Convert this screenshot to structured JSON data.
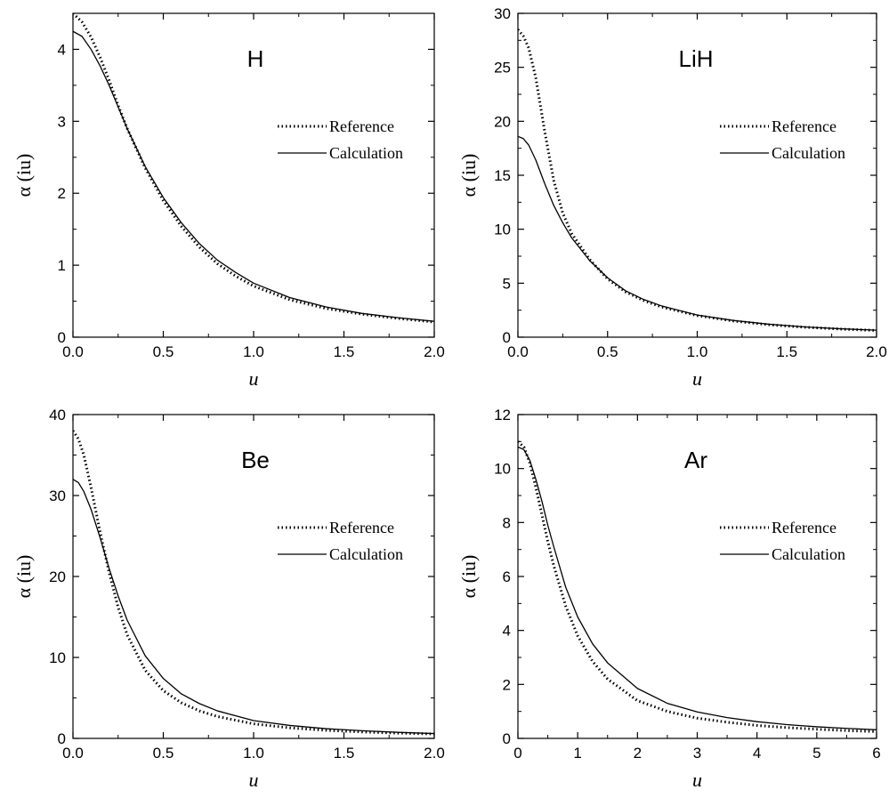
{
  "chart_data": [
    {
      "type": "line",
      "label": "H",
      "xlabel": "u",
      "ylabel": "α (iu)",
      "xlim": [
        0,
        2.0
      ],
      "ylim": [
        0,
        4.5
      ],
      "xticks": [
        0,
        0.5,
        1.0,
        1.5,
        2.0
      ],
      "xtick_labels": [
        "0.0",
        "0.5",
        "1.0",
        "1.5",
        "2.0"
      ],
      "yticks": [
        0,
        1,
        2,
        3,
        4
      ],
      "ytick_labels": [
        "0",
        "1",
        "2",
        "3",
        "4"
      ],
      "legend_position": "right-middle",
      "x": [
        0,
        0.05,
        0.1,
        0.15,
        0.2,
        0.25,
        0.3,
        0.4,
        0.5,
        0.6,
        0.7,
        0.8,
        0.9,
        1.0,
        1.2,
        1.4,
        1.6,
        1.8,
        2.0
      ],
      "series": [
        {
          "name": "Reference",
          "style": "dotted",
          "values": [
            4.5,
            4.38,
            4.17,
            3.89,
            3.57,
            3.22,
            2.9,
            2.35,
            1.9,
            1.54,
            1.25,
            1.02,
            0.85,
            0.71,
            0.52,
            0.4,
            0.32,
            0.26,
            0.21
          ]
        },
        {
          "name": "Calculation",
          "style": "solid",
          "values": [
            4.25,
            4.18,
            4.0,
            3.77,
            3.5,
            3.2,
            2.9,
            2.37,
            1.94,
            1.59,
            1.3,
            1.07,
            0.9,
            0.75,
            0.55,
            0.42,
            0.33,
            0.27,
            0.22
          ]
        }
      ]
    },
    {
      "type": "line",
      "label": "LiH",
      "xlabel": "u",
      "ylabel": "α (iu)",
      "xlim": [
        0,
        2.0
      ],
      "ylim": [
        0,
        30
      ],
      "xticks": [
        0,
        0.5,
        1.0,
        1.5,
        2.0
      ],
      "xtick_labels": [
        "0.0",
        "0.5",
        "1.0",
        "1.5",
        "2.0"
      ],
      "yticks": [
        0,
        5,
        10,
        15,
        20,
        25,
        30
      ],
      "ytick_labels": [
        "0",
        "5",
        "10",
        "15",
        "20",
        "25",
        "30"
      ],
      "legend_position": "right-middle",
      "x": [
        0,
        0.03,
        0.06,
        0.1,
        0.15,
        0.2,
        0.25,
        0.3,
        0.4,
        0.5,
        0.6,
        0.7,
        0.8,
        1.0,
        1.2,
        1.4,
        1.6,
        1.8,
        2.0
      ],
      "series": [
        {
          "name": "Reference",
          "style": "dotted",
          "values": [
            28.5,
            27.9,
            26.8,
            24.0,
            19.0,
            14.5,
            11.5,
            9.6,
            7.2,
            5.4,
            4.2,
            3.4,
            2.8,
            2.0,
            1.5,
            1.15,
            0.92,
            0.75,
            0.62
          ]
        },
        {
          "name": "Calculation",
          "style": "solid",
          "values": [
            18.6,
            18.4,
            17.8,
            16.4,
            14.2,
            12.2,
            10.6,
            9.2,
            7.1,
            5.5,
            4.3,
            3.5,
            2.9,
            2.05,
            1.55,
            1.2,
            0.95,
            0.78,
            0.65
          ]
        }
      ]
    },
    {
      "type": "line",
      "label": "Be",
      "xlabel": "u",
      "ylabel": "α (iu)",
      "xlim": [
        0,
        2.0
      ],
      "ylim": [
        0,
        40
      ],
      "xticks": [
        0,
        0.5,
        1.0,
        1.5,
        2.0
      ],
      "xtick_labels": [
        "0.0",
        "0.5",
        "1.0",
        "1.5",
        "2.0"
      ],
      "yticks": [
        0,
        10,
        20,
        30,
        40
      ],
      "ytick_labels": [
        "0",
        "10",
        "20",
        "30",
        "40"
      ],
      "legend_position": "right-middle",
      "x": [
        0,
        0.03,
        0.06,
        0.1,
        0.15,
        0.2,
        0.25,
        0.3,
        0.4,
        0.5,
        0.6,
        0.7,
        0.8,
        1.0,
        1.2,
        1.4,
        1.6,
        1.8,
        2.0
      ],
      "series": [
        {
          "name": "Reference",
          "style": "dotted",
          "values": [
            38.0,
            37.0,
            35.0,
            31.0,
            25.5,
            20.5,
            16.2,
            12.8,
            8.4,
            5.9,
            4.4,
            3.4,
            2.7,
            1.8,
            1.3,
            1.0,
            0.8,
            0.65,
            0.55
          ]
        },
        {
          "name": "Calculation",
          "style": "solid",
          "values": [
            32.0,
            31.6,
            30.5,
            28.3,
            24.8,
            21.0,
            17.6,
            14.6,
            10.2,
            7.4,
            5.5,
            4.3,
            3.4,
            2.2,
            1.6,
            1.2,
            0.95,
            0.75,
            0.6
          ]
        }
      ]
    },
    {
      "type": "line",
      "label": "Ar",
      "xlabel": "u",
      "ylabel": "α (iu)",
      "xlim": [
        0,
        6
      ],
      "ylim": [
        0,
        12
      ],
      "xticks": [
        0,
        1,
        2,
        3,
        4,
        5,
        6
      ],
      "xtick_labels": [
        "0",
        "1",
        "2",
        "3",
        "4",
        "5",
        "6"
      ],
      "yticks": [
        0,
        2,
        4,
        6,
        8,
        10,
        12
      ],
      "ytick_labels": [
        "0",
        "2",
        "4",
        "6",
        "8",
        "10",
        "12"
      ],
      "legend_position": "right-middle",
      "x": [
        0,
        0.1,
        0.2,
        0.3,
        0.4,
        0.5,
        0.6,
        0.8,
        1.0,
        1.25,
        1.5,
        2.0,
        2.5,
        3.0,
        3.5,
        4.0,
        4.5,
        5.0,
        5.5,
        6.0
      ],
      "series": [
        {
          "name": "Reference",
          "style": "dotted",
          "values": [
            11.0,
            10.8,
            10.2,
            9.3,
            8.3,
            7.3,
            6.4,
            4.9,
            3.8,
            2.85,
            2.2,
            1.4,
            1.0,
            0.75,
            0.6,
            0.48,
            0.4,
            0.34,
            0.29,
            0.25
          ]
        },
        {
          "name": "Calculation",
          "style": "solid",
          "values": [
            10.8,
            10.7,
            10.3,
            9.6,
            8.8,
            7.9,
            7.1,
            5.6,
            4.5,
            3.5,
            2.8,
            1.85,
            1.3,
            0.98,
            0.77,
            0.62,
            0.51,
            0.43,
            0.37,
            0.32
          ]
        }
      ]
    }
  ]
}
